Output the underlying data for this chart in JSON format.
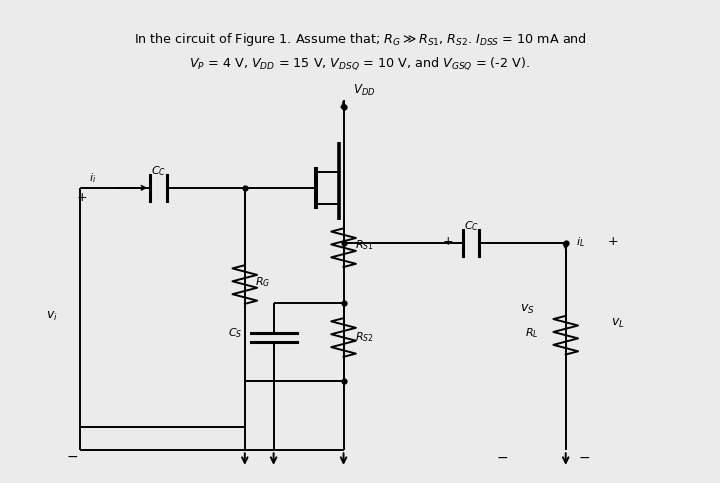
{
  "bg_color": "#ebebeb",
  "inner_bg": "#ffffff",
  "title_line1": "In the circuit of Figure 1. Assume that; $R_G \\gg R_{S1}$, $R_{S2}$. $\\mathbf{\\textit{I}}_{DSS}$ = 10 mA and",
  "title_line2": "$V_P$ = 4 V, $V_{DD}$ = 15 V, $V_{DSQ}$ = 10 V, and $V_{GSQ}$ = (-2 V).",
  "fig_width": 7.2,
  "fig_height": 4.83,
  "dpi": 100
}
